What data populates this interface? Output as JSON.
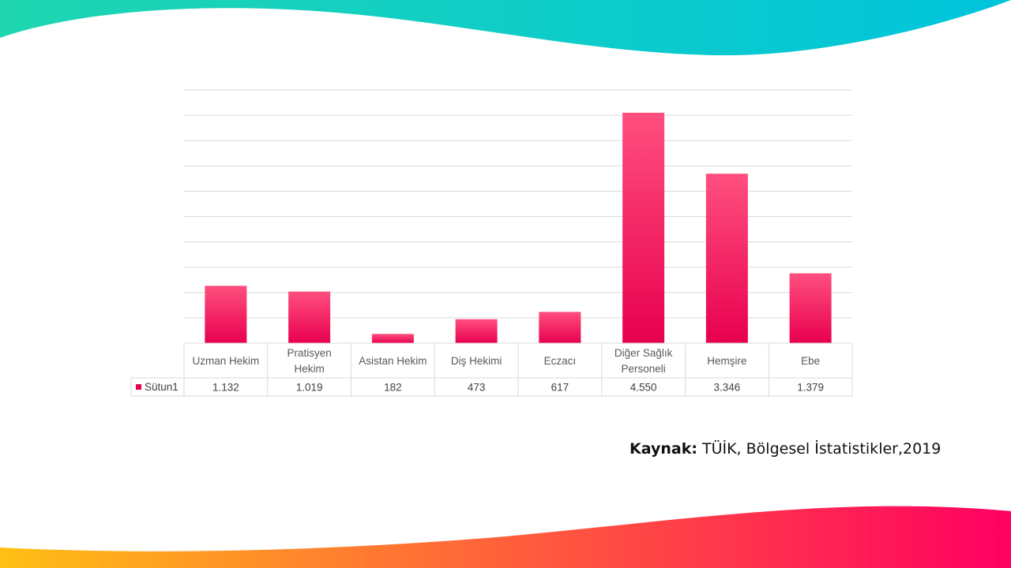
{
  "colors": {
    "bar_top": "#ff4f7f",
    "bar_bottom": "#e8004f",
    "legend_swatch": "#e6004f",
    "grid": "#d9d9d9",
    "wave_top_start": "#1fd6b0",
    "wave_top_end": "#00c4dc",
    "wave_bottom_start": "#ffc014",
    "wave_bottom_end": "#ff0062"
  },
  "source": {
    "label": "Kaynak:",
    "text": "TÜİK, Bölgesel İstatistikler,2019"
  },
  "chart_data": {
    "type": "bar",
    "title": "",
    "xlabel": "",
    "ylabel": "",
    "categories": [
      [
        "Uzman Hekim"
      ],
      [
        "Pratisyen",
        "Hekim"
      ],
      [
        "Asistan Hekim"
      ],
      [
        "Diş Hekimi"
      ],
      [
        "Eczacı"
      ],
      [
        "Diğer Sağlık",
        "Personeli"
      ],
      [
        "Hemşire"
      ],
      [
        "Ebe"
      ]
    ],
    "series": [
      {
        "name": "Sütun1",
        "values": [
          1132,
          1019,
          182,
          473,
          617,
          4550,
          3346,
          1379
        ],
        "labels": [
          "1.132",
          "1.019",
          "182",
          "473",
          "617",
          "4.550",
          "3.346",
          "1.379"
        ]
      }
    ],
    "ylim": [
      0,
      5000
    ],
    "gridlines": 10,
    "grid": true,
    "y_tick_labels_shown": false,
    "data_table": true,
    "legend": "data-table-left"
  }
}
